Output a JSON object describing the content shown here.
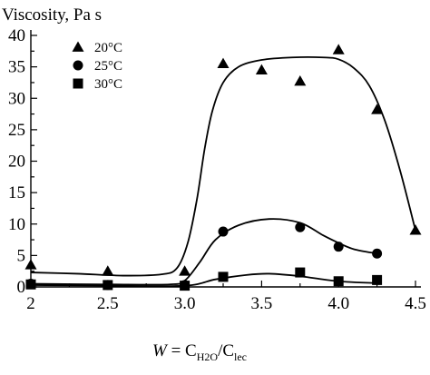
{
  "chart_data": {
    "type": "scatter",
    "ylabel": "Viscosity, Pa s",
    "xlabel": {
      "var": "W",
      "eq": " = C",
      "sub1": "H2O",
      "slash": "/C",
      "sub2": "lec"
    },
    "xlim": [
      2,
      4.5
    ],
    "ylim": [
      0,
      40
    ],
    "xticks": [
      2,
      2.5,
      3.0,
      3.5,
      4.0,
      4.5
    ],
    "xtick_labels": [
      "2",
      "2.5",
      "3.0",
      "3.5",
      "4.0",
      "4.5"
    ],
    "yticks": [
      0,
      5,
      10,
      15,
      20,
      25,
      30,
      35,
      40
    ],
    "ytick_labels": [
      "0",
      "5",
      "10",
      "15",
      "20",
      "25",
      "30",
      "35",
      "40"
    ],
    "legend_position": "top-left",
    "grid": false,
    "series": [
      {
        "name": "20°C",
        "marker": "triangle",
        "points": [
          [
            2,
            3.5
          ],
          [
            2.5,
            2.5
          ],
          [
            3.0,
            2.5
          ],
          [
            3.25,
            35.5
          ],
          [
            3.5,
            34.5
          ],
          [
            3.75,
            32.7
          ],
          [
            4.0,
            37.7
          ],
          [
            4.25,
            28.2
          ],
          [
            4.5,
            9.0
          ]
        ],
        "curve": [
          [
            2,
            2.3
          ],
          [
            2.3,
            2.1
          ],
          [
            2.6,
            1.8
          ],
          [
            2.85,
            2.0
          ],
          [
            2.95,
            3.0
          ],
          [
            3.02,
            7.0
          ],
          [
            3.08,
            14.0
          ],
          [
            3.13,
            22.0
          ],
          [
            3.18,
            28.0
          ],
          [
            3.25,
            32.5
          ],
          [
            3.35,
            35.0
          ],
          [
            3.5,
            36.1
          ],
          [
            3.7,
            36.5
          ],
          [
            3.9,
            36.5
          ],
          [
            4.0,
            36.2
          ],
          [
            4.1,
            34.8
          ],
          [
            4.2,
            32.0
          ],
          [
            4.3,
            26.5
          ],
          [
            4.4,
            18.5
          ],
          [
            4.5,
            9.0
          ]
        ]
      },
      {
        "name": "25°C",
        "marker": "circle",
        "points": [
          [
            2,
            0.5
          ],
          [
            2.5,
            0.3
          ],
          [
            3.0,
            0.3
          ],
          [
            3.25,
            8.8
          ],
          [
            3.75,
            9.5
          ],
          [
            4.0,
            6.4
          ],
          [
            4.25,
            5.3
          ]
        ],
        "curve": [
          [
            2,
            0.5
          ],
          [
            2.5,
            0.4
          ],
          [
            2.9,
            0.4
          ],
          [
            3.0,
            1.0
          ],
          [
            3.1,
            4.0
          ],
          [
            3.2,
            7.5
          ],
          [
            3.35,
            9.8
          ],
          [
            3.55,
            10.8
          ],
          [
            3.75,
            10.2
          ],
          [
            3.9,
            8.2
          ],
          [
            4.0,
            7.0
          ],
          [
            4.1,
            6.0
          ],
          [
            4.25,
            5.3
          ]
        ]
      },
      {
        "name": "30°C",
        "marker": "square",
        "points": [
          [
            2,
            0.4
          ],
          [
            2.5,
            0.3
          ],
          [
            3.0,
            0.2
          ],
          [
            3.25,
            1.6
          ],
          [
            3.75,
            2.3
          ],
          [
            4.0,
            0.9
          ],
          [
            4.25,
            1.1
          ]
        ],
        "curve": [
          [
            2,
            0.3
          ],
          [
            2.5,
            0.2
          ],
          [
            3.0,
            0.2
          ],
          [
            3.2,
            1.2
          ],
          [
            3.4,
            1.9
          ],
          [
            3.55,
            2.1
          ],
          [
            3.75,
            1.7
          ],
          [
            4.0,
            0.9
          ],
          [
            4.25,
            0.6
          ]
        ]
      }
    ]
  }
}
